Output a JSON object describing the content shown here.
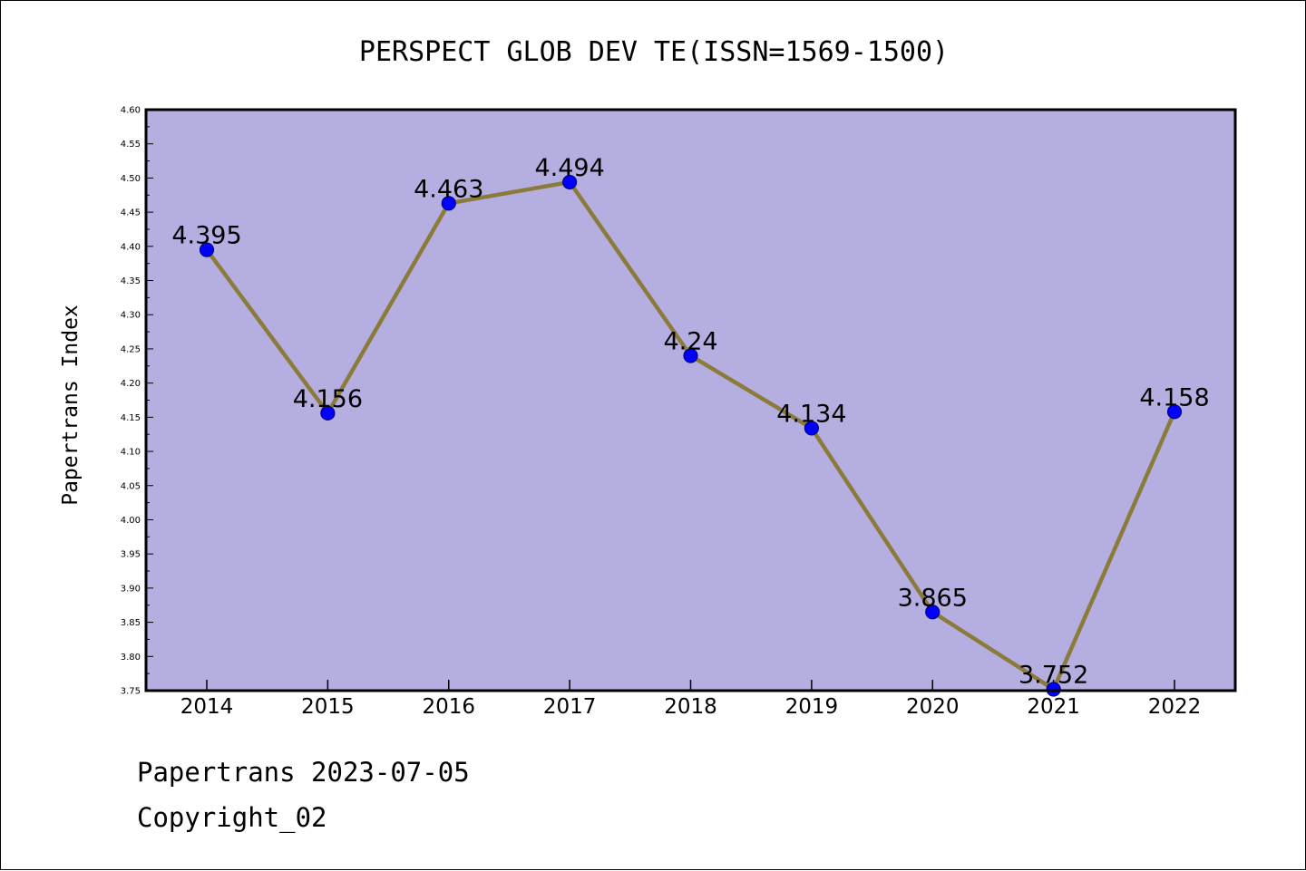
{
  "chart_data": {
    "type": "line",
    "title": "PERSPECT GLOB DEV TE(ISSN=1569-1500)",
    "ylabel": "Papertrans Index",
    "xlabel": "",
    "categories": [
      "2014",
      "2015",
      "2016",
      "2017",
      "2018",
      "2019",
      "2020",
      "2021",
      "2022"
    ],
    "series": [
      {
        "values": [
          4.395,
          4.156,
          4.463,
          4.494,
          4.24,
          4.134,
          3.865,
          3.752,
          4.158
        ]
      }
    ],
    "data_labels": [
      "4.395",
      "4.156",
      "4.463",
      "4.494",
      "4.24",
      "4.134",
      "3.865",
      "3.752",
      "4.158"
    ],
    "ylim": [
      3.75,
      4.6
    ],
    "yticks": [
      "3.75",
      "3.80",
      "3.85",
      "3.90",
      "3.95",
      "4.00",
      "4.05",
      "4.10",
      "4.15",
      "4.20",
      "4.25",
      "4.30",
      "4.35",
      "4.40",
      "4.45",
      "4.50",
      "4.55",
      "4.60"
    ],
    "grid": false,
    "legend": "none",
    "colors": {
      "plot_background": "#b5aee1",
      "line": "#8b7b3a",
      "marker_fill": "#0000ff",
      "marker_stroke": "#000080",
      "axis": "#000000"
    }
  },
  "footer": {
    "date_line": "Papertrans 2023-07-05",
    "copyright_line": "Copyright_02"
  }
}
